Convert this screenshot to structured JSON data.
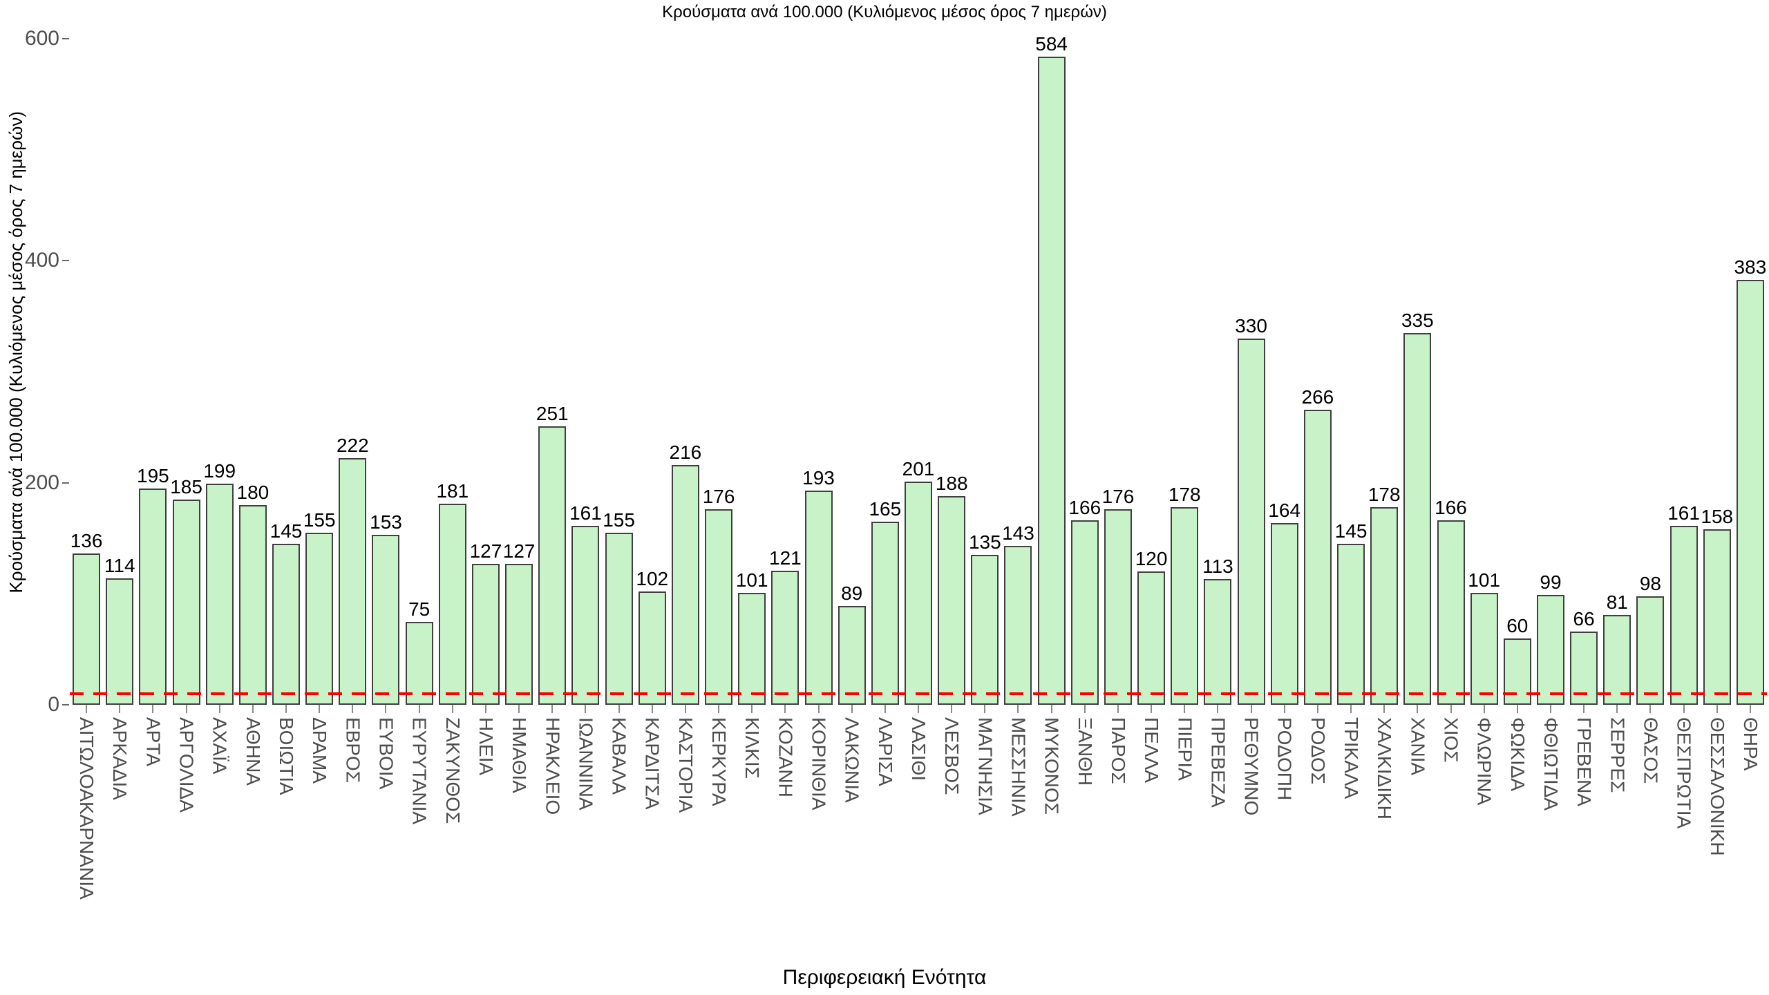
{
  "page": {
    "background": "#ffffff"
  },
  "chart_data": {
    "type": "bar",
    "title": "Κρούσματα ανά 100.000 (Κυλιόμενος μέσος όρος 7 ημερών)",
    "ylabel": "Κρούσματα ανά 100.000 (Κυλιόμενος μέσος όρος 7 ημερών)",
    "xlabel": "Περιφερειακή Ενότητα",
    "categories": [
      "ΑΙΤΩΛΟΑΚΑΡΝΑΝΙΑ",
      "ΑΡΚΑΔΙΑ",
      "ΑΡΤΑ",
      "ΑΡΓΟΛΙΔΑ",
      "ΑΧΑΪΑ",
      "ΑΘΗΝΑ",
      "ΒΟΙΩΤΙΑ",
      "ΔΡΑΜΑ",
      "ΕΒΡΟΣ",
      "ΕΥΒΟΙΑ",
      "ΕΥΡΥΤΑΝΙΑ",
      "ΖΑΚΥΝΘΟΣ",
      "ΗΛΕΙΑ",
      "ΗΜΑΘΙΑ",
      "ΗΡΑΚΛΕΙΟ",
      "ΙΩΑΝΝΙΝΑ",
      "ΚΑΒΑΛΑ",
      "ΚΑΡΔΙΤΣΑ",
      "ΚΑΣΤΟΡΙΑ",
      "ΚΕΡΚΥΡΑ",
      "ΚΙΛΚΙΣ",
      "ΚΟΖΑΝΗ",
      "ΚΟΡΙΝΘΙΑ",
      "ΛΑΚΩΝΙΑ",
      "ΛΑΡΙΣΑ",
      "ΛΑΣΙΘΙ",
      "ΛΕΣΒΟΣ",
      "ΜΑΓΝΗΣΙΑ",
      "ΜΕΣΣΗΝΙΑ",
      "ΜΥΚΟΝΟΣ",
      "ΞΑΝΘΗ",
      "ΠΑΡΟΣ",
      "ΠΕΛΛΑ",
      "ΠΙΕΡΙΑ",
      "ΠΡΕΒΕΖΑ",
      "ΡΕΘΥΜΝΟ",
      "ΡΟΔΟΠΗ",
      "ΡΟΔΟΣ",
      "ΤΡΙΚΑΛΑ",
      "ΧΑΛΚΙΔΙΚΗ",
      "ΧΑΝΙΑ",
      "ΧΙΟΣ",
      "ΦΛΩΡΙΝΑ",
      "ΦΩΚΙΔΑ",
      "ΦΘΙΩΤΙΔΑ",
      "ΓΡΕΒΕΝΑ",
      "ΣΕΡΡΕΣ",
      "ΘΑΣΟΣ",
      "ΘΕΣΠΡΩΤΙΑ",
      "ΘΕΣΣΑΛΟΝΙΚΗ",
      "ΘΗΡΑ"
    ],
    "values": [
      136,
      114,
      195,
      185,
      199,
      180,
      145,
      155,
      222,
      153,
      75,
      181,
      127,
      127,
      251,
      161,
      155,
      102,
      216,
      176,
      101,
      121,
      193,
      89,
      165,
      201,
      188,
      135,
      143,
      584,
      166,
      176,
      120,
      178,
      113,
      330,
      164,
      266,
      145,
      178,
      335,
      166,
      101,
      60,
      99,
      66,
      81,
      98,
      161,
      158,
      383
    ],
    "yticks": [
      0,
      200,
      400,
      600
    ],
    "ylim": [
      0,
      600
    ],
    "grid": false,
    "legend_position": "none",
    "threshold_line": {
      "value": 10,
      "color": "#ff0000",
      "style": "dashed"
    },
    "bar_fill": "#c8f3c8",
    "bar_border": "#3f3f3f",
    "tick_label_color": "#4d4d4d",
    "value_label_color": "#000000"
  }
}
